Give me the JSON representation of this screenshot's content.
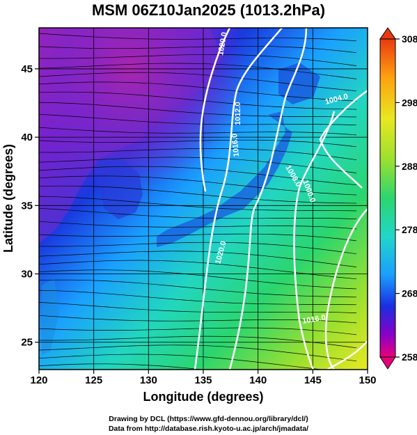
{
  "title": "MSM 06Z10Jan2025 (1013.2hPa)",
  "x_axis": {
    "label": "Longitude (degrees)",
    "ticks": [
      "120",
      "125",
      "130",
      "135",
      "140",
      "145",
      "150"
    ],
    "range": [
      120,
      150
    ]
  },
  "y_axis": {
    "label": "Latitude  (degrees)",
    "ticks": [
      "25",
      "30",
      "35",
      "40",
      "45"
    ],
    "range": [
      23,
      48
    ]
  },
  "colorbar": {
    "ticks": [
      "308",
      "298",
      "288",
      "278",
      "268",
      "258"
    ],
    "range": [
      258,
      308
    ],
    "colors": [
      "#e8007a",
      "#8a00c8",
      "#1a2ee0",
      "#1aa0ff",
      "#22d6c8",
      "#2bd66e",
      "#9be030",
      "#e8e820",
      "#ffa010",
      "#e83a10"
    ]
  },
  "isobars": [
    {
      "label": "1020.0"
    },
    {
      "label": "1016.0"
    },
    {
      "label": "1012.0"
    },
    {
      "label": "1008.0"
    },
    {
      "label": "1004.0"
    },
    {
      "label": "1000.0"
    },
    {
      "label": "1020.0"
    },
    {
      "label": "1016.0"
    }
  ],
  "credits": {
    "line1": "Drawing by DCL (https://www.gfd-dennou.org/library/dcl/)",
    "line2": "Data from http://database.rish.kyoto-u.ac.jp/arch/jmadata/"
  }
}
